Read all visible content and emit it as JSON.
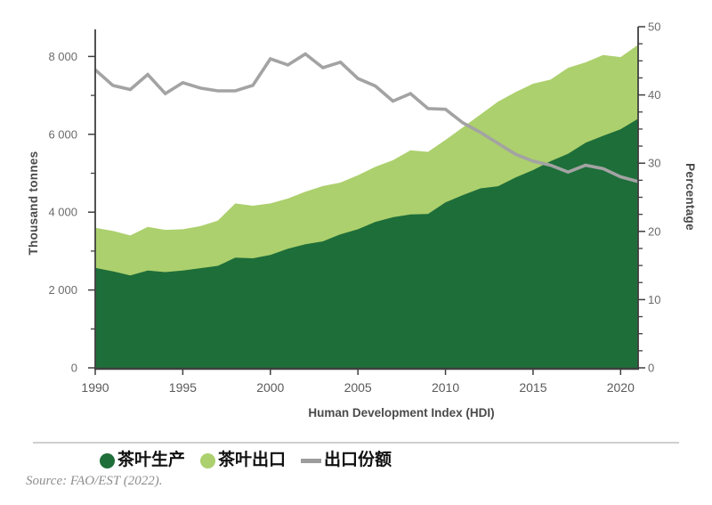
{
  "chart_data": {
    "type": "area",
    "years": [
      1990,
      1991,
      1992,
      1993,
      1994,
      1995,
      1996,
      1997,
      1998,
      1999,
      2000,
      2001,
      2002,
      2003,
      2004,
      2005,
      2006,
      2007,
      2008,
      2009,
      2010,
      2011,
      2012,
      2013,
      2014,
      2015,
      2016,
      2017,
      2018,
      2019,
      2020,
      2021
    ],
    "series": [
      {
        "name": "茶叶生产",
        "type": "area",
        "axis": "left",
        "color": "#1e6e3a",
        "values": [
          2570,
          2480,
          2375,
          2500,
          2460,
          2500,
          2560,
          2620,
          2830,
          2815,
          2900,
          3060,
          3175,
          3250,
          3430,
          3560,
          3750,
          3870,
          3940,
          3955,
          4250,
          4440,
          4610,
          4665,
          4890,
          5080,
          5310,
          5500,
          5785,
          5960,
          6130,
          6400
        ]
      },
      {
        "name": "茶叶出口",
        "type": "area-stacked",
        "axis": "left",
        "color": "#acd06d",
        "values": [
          1030,
          1040,
          1025,
          1120,
          1085,
          1060,
          1080,
          1160,
          1395,
          1350,
          1325,
          1290,
          1350,
          1420,
          1330,
          1390,
          1415,
          1465,
          1650,
          1595,
          1605,
          1740,
          1900,
          2175,
          2195,
          2220,
          2095,
          2210,
          2065,
          2080,
          1855,
          1900
        ]
      },
      {
        "name": "出口份额",
        "type": "line",
        "axis": "right",
        "color": "#a3a3a3",
        "values": [
          43.7,
          41.4,
          40.8,
          43.0,
          40.2,
          41.8,
          41.0,
          40.6,
          40.6,
          41.4,
          45.3,
          44.4,
          46.0,
          44.0,
          44.8,
          42.4,
          41.3,
          39.1,
          40.2,
          38.0,
          37.9,
          35.9,
          34.5,
          32.9,
          31.3,
          30.3,
          29.7,
          28.7,
          29.7,
          29.2,
          28.0,
          27.3
        ]
      }
    ],
    "left_axis": {
      "title": "Thousand tonnes",
      "range": [
        0,
        8000
      ],
      "ticks": [
        0,
        2000,
        4000,
        6000,
        8000
      ],
      "tick_labels": [
        "0",
        "2 000",
        "4 000",
        "6 000",
        "8 000"
      ],
      "minor_step": 1000
    },
    "right_axis": {
      "title": "Percentage",
      "range": [
        0,
        50
      ],
      "ticks": [
        0,
        10,
        20,
        30,
        40,
        50
      ],
      "tick_labels": [
        "0",
        "10",
        "20",
        "30",
        "40",
        "50"
      ],
      "minor_step": 2.5
    },
    "x_axis": {
      "title": "Human Development Index (HDI)",
      "range": [
        1990,
        2021
      ],
      "ticks": [
        1990,
        1995,
        2000,
        2005,
        2010,
        2015,
        2020
      ],
      "tick_labels": [
        "1990",
        "1995",
        "2000",
        "2005",
        "2010",
        "2015",
        "2020"
      ]
    },
    "grid": false,
    "legend_position": "bottom"
  },
  "legend": {
    "items": [
      {
        "label": "茶叶生产",
        "marker": "circle",
        "color": "#1e6e3a"
      },
      {
        "label": "茶叶出口",
        "marker": "circle",
        "color": "#acd06d"
      },
      {
        "label": "出口份额",
        "marker": "dash",
        "color": "#9c9c9c"
      }
    ]
  },
  "source": "Source: FAO/EST (2022)."
}
